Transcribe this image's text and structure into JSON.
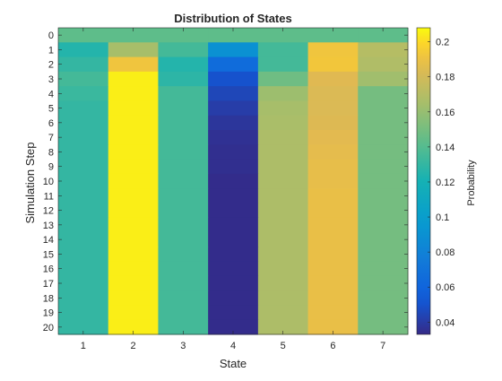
{
  "chart_data": {
    "type": "heatmap",
    "title": "Distribution of States",
    "xlabel": "State",
    "ylabel": "Simulation Step",
    "colorbar_label": "Probability",
    "x_categories": [
      "1",
      "2",
      "3",
      "4",
      "5",
      "6",
      "7"
    ],
    "y_categories": [
      "0",
      "1",
      "2",
      "3",
      "4",
      "5",
      "6",
      "7",
      "8",
      "9",
      "10",
      "11",
      "12",
      "13",
      "14",
      "15",
      "16",
      "17",
      "18",
      "19",
      "20"
    ],
    "color_range": [
      0.033,
      0.208
    ],
    "colorbar_ticks": [
      "0.04",
      "0.06",
      "0.08",
      "0.1",
      "0.12",
      "0.14",
      "0.16",
      "0.18",
      "0.2"
    ],
    "colorbar_tick_values": [
      0.04,
      0.06,
      0.08,
      0.1,
      0.12,
      0.14,
      0.16,
      0.18,
      0.2
    ],
    "colormap": "parula",
    "values": [
      [
        0.143,
        0.143,
        0.143,
        0.143,
        0.143,
        0.143,
        0.143
      ],
      [
        0.125,
        0.165,
        0.135,
        0.09,
        0.135,
        0.192,
        0.17
      ],
      [
        0.13,
        0.192,
        0.125,
        0.065,
        0.135,
        0.193,
        0.168
      ],
      [
        0.135,
        0.205,
        0.128,
        0.05,
        0.148,
        0.185,
        0.163
      ],
      [
        0.132,
        0.205,
        0.135,
        0.045,
        0.162,
        0.183,
        0.15
      ],
      [
        0.13,
        0.205,
        0.135,
        0.041,
        0.165,
        0.183,
        0.15
      ],
      [
        0.13,
        0.205,
        0.135,
        0.038,
        0.166,
        0.184,
        0.15
      ],
      [
        0.13,
        0.205,
        0.135,
        0.036,
        0.167,
        0.186,
        0.15
      ],
      [
        0.13,
        0.205,
        0.135,
        0.035,
        0.167,
        0.187,
        0.15
      ],
      [
        0.13,
        0.205,
        0.135,
        0.035,
        0.167,
        0.188,
        0.15
      ],
      [
        0.13,
        0.205,
        0.135,
        0.034,
        0.167,
        0.188,
        0.15
      ],
      [
        0.13,
        0.205,
        0.135,
        0.034,
        0.167,
        0.189,
        0.15
      ],
      [
        0.13,
        0.205,
        0.135,
        0.034,
        0.167,
        0.189,
        0.15
      ],
      [
        0.13,
        0.205,
        0.135,
        0.034,
        0.167,
        0.189,
        0.15
      ],
      [
        0.13,
        0.205,
        0.135,
        0.034,
        0.167,
        0.189,
        0.15
      ],
      [
        0.13,
        0.205,
        0.135,
        0.034,
        0.167,
        0.189,
        0.15
      ],
      [
        0.13,
        0.205,
        0.135,
        0.034,
        0.167,
        0.189,
        0.15
      ],
      [
        0.13,
        0.205,
        0.135,
        0.034,
        0.167,
        0.189,
        0.15
      ],
      [
        0.13,
        0.205,
        0.135,
        0.034,
        0.167,
        0.189,
        0.15
      ],
      [
        0.13,
        0.205,
        0.135,
        0.034,
        0.167,
        0.189,
        0.15
      ],
      [
        0.13,
        0.205,
        0.135,
        0.034,
        0.167,
        0.189,
        0.15
      ]
    ]
  }
}
